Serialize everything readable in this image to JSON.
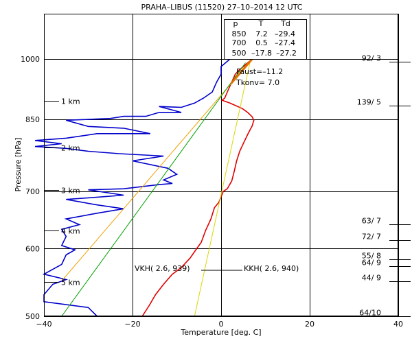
{
  "chart_data": {
    "type": "line",
    "title": "PRAHA–LIBUS (11520)    27–10–2014   12   UTC",
    "xlabel": "Temperature [deg. C]",
    "ylabel": "Pressure [hPa]",
    "xlim": [
      -40,
      40
    ],
    "x_ticks": [
      -40,
      -20,
      0,
      20,
      40
    ],
    "y_axis_scale": "log",
    "ylim": [
      1130,
      500
    ],
    "y_ticks": [
      500,
      600,
      700,
      850,
      1000
    ],
    "grid": true,
    "height_markers": [
      {
        "label": "1 km",
        "p": 893
      },
      {
        "label": "2 km",
        "p": 788
      },
      {
        "label": "3 km",
        "p": 703
      },
      {
        "label": "4 km",
        "p": 630
      },
      {
        "label": "5 km",
        "p": 548
      }
    ],
    "wind_barbs": [
      {
        "label": "64/10",
        "p": 500
      },
      {
        "label": "44/ 9",
        "p": 549
      },
      {
        "label": "64/ 9",
        "p": 572
      },
      {
        "label": "55/ 8",
        "p": 583
      },
      {
        "label": "72/ 7",
        "p": 614
      },
      {
        "label": "63/ 7",
        "p": 640
      },
      {
        "label": "139/ 5",
        "p": 882
      },
      {
        "label": "92/ 3",
        "p": 992
      }
    ],
    "table": {
      "headers": [
        "p",
        "T",
        "Td"
      ],
      "rows": [
        [
          "850",
          "7.2",
          "–29.4"
        ],
        [
          "700",
          "0.5",
          "–27.4"
        ],
        [
          "500",
          "–17.8",
          "–27.2"
        ]
      ]
    },
    "indices": {
      "faust": "Faust=–11.2",
      "tkonv": "Tkonv=  7.0"
    },
    "annotations": {
      "vkh": "VKH(  2.6, 939)",
      "kkh": "KKH(  2.6, 940)"
    },
    "series": [
      {
        "name": "temperature",
        "color": "#e00000",
        "points": [
          [
            7.0,
            1000
          ],
          [
            6.0,
            990
          ],
          [
            5.0,
            980
          ],
          [
            4.0,
            970
          ],
          [
            3.2,
            960
          ],
          [
            2.4,
            940
          ],
          [
            1.6,
            920
          ],
          [
            0.8,
            900
          ],
          [
            0.2,
            895
          ],
          [
            2.0,
            888
          ],
          [
            4.8,
            875
          ],
          [
            6.0,
            866
          ],
          [
            7.0,
            856
          ],
          [
            7.4,
            848
          ],
          [
            7.0,
            835
          ],
          [
            6.2,
            820
          ],
          [
            5.2,
            800
          ],
          [
            4.2,
            780
          ],
          [
            3.5,
            760
          ],
          [
            3.0,
            740
          ],
          [
            2.4,
            720
          ],
          [
            1.4,
            705
          ],
          [
            0.5,
            700
          ],
          [
            0.0,
            690
          ],
          [
            -0.5,
            680
          ],
          [
            -1.5,
            670
          ],
          [
            -2.3,
            650
          ],
          [
            -3.5,
            630
          ],
          [
            -4.5,
            610
          ],
          [
            -5.5,
            600
          ],
          [
            -7.0,
            585
          ],
          [
            -9.0,
            570
          ],
          [
            -11.0,
            560
          ],
          [
            -13.0,
            545
          ],
          [
            -14.8,
            530
          ],
          [
            -16.2,
            515
          ],
          [
            -17.8,
            500
          ]
        ]
      },
      {
        "name": "dewpoint",
        "color": "#0000cc",
        "points": [
          [
            2.0,
            1000
          ],
          [
            0.0,
            980
          ],
          [
            0.0,
            960
          ],
          [
            -1.0,
            940
          ],
          [
            -2.0,
            915
          ],
          [
            -4.0,
            900
          ],
          [
            -6.0,
            888
          ],
          [
            -9.0,
            878
          ],
          [
            -14.0,
            880
          ],
          [
            -9.0,
            866
          ],
          [
            -14.0,
            866
          ],
          [
            -17.0,
            857
          ],
          [
            -22.0,
            857
          ],
          [
            -25.0,
            852
          ],
          [
            -35.0,
            848
          ],
          [
            -30.0,
            834
          ],
          [
            -22.0,
            830
          ],
          [
            -16.0,
            818
          ],
          [
            -28.0,
            818
          ],
          [
            -35.0,
            808
          ],
          [
            -42.0,
            803
          ],
          [
            -36.0,
            796
          ],
          [
            -42.0,
            790
          ],
          [
            -35.0,
            786
          ],
          [
            -30.0,
            780
          ],
          [
            -23.0,
            775
          ],
          [
            -13.0,
            770
          ],
          [
            -20.0,
            760
          ],
          [
            -12.0,
            745
          ],
          [
            -10.0,
            733
          ],
          [
            -13.0,
            722
          ],
          [
            -11.0,
            715
          ],
          [
            -14.0,
            713
          ],
          [
            -22.0,
            705
          ],
          [
            -30.0,
            703
          ],
          [
            -22.0,
            693
          ],
          [
            -30.0,
            688
          ],
          [
            -35.0,
            685
          ],
          [
            -28.0,
            675
          ],
          [
            -22.0,
            668
          ],
          [
            -28.0,
            660
          ],
          [
            -35.0,
            650
          ],
          [
            -32.0,
            640
          ],
          [
            -36.0,
            632
          ],
          [
            -35.0,
            620
          ],
          [
            -36.0,
            605
          ],
          [
            -33.0,
            598
          ],
          [
            -35.0,
            590
          ],
          [
            -36.0,
            575
          ],
          [
            -40.0,
            560
          ],
          [
            -35.0,
            552
          ],
          [
            -38.0,
            545
          ],
          [
            -40.0,
            530
          ],
          [
            -40.0,
            520
          ],
          [
            -30.0,
            512
          ],
          [
            -28.0,
            500
          ]
        ]
      },
      {
        "name": "line-orange",
        "color": "#f0a000",
        "points": [
          [
            7.0,
            1000
          ],
          [
            -36.0,
            550
          ]
        ]
      },
      {
        "name": "line-green",
        "color": "#00a000",
        "points": [
          [
            5.5,
            990
          ],
          [
            -36.0,
            500
          ]
        ]
      },
      {
        "name": "line-yellow",
        "color": "#d8d800",
        "points": [
          [
            6.5,
            990
          ],
          [
            -6.0,
            500
          ]
        ]
      }
    ]
  }
}
